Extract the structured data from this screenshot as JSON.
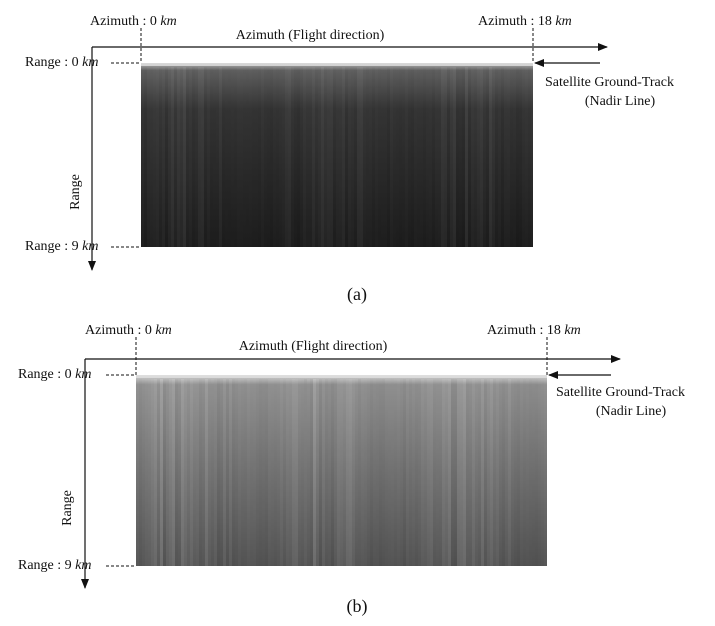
{
  "panels": [
    {
      "azimuth_start": {
        "text": "Azimuth : 0",
        "unit": "km"
      },
      "azimuth_end": {
        "text": "Azimuth : 18",
        "unit": "km"
      },
      "azimuth_axis": "Azimuth (Flight direction)",
      "range_start": {
        "text": "Range : 0",
        "unit": "km"
      },
      "range_end": {
        "text": "Range : 9",
        "unit": "km"
      },
      "range_axis": "Range",
      "ground_track": [
        "Satellite Ground-Track",
        "(Nadir Line)"
      ],
      "caption": "(a)"
    },
    {
      "azimuth_start": {
        "text": "Azimuth : 0",
        "unit": "km"
      },
      "azimuth_end": {
        "text": "Azimuth : 18",
        "unit": "km"
      },
      "azimuth_axis": "Azimuth (Flight direction)",
      "range_start": {
        "text": "Range : 0",
        "unit": "km"
      },
      "range_end": {
        "text": "Range : 9",
        "unit": "km"
      },
      "range_axis": "Range",
      "ground_track": [
        "Satellite Ground-Track",
        "(Nadir Line)"
      ],
      "caption": "(b)"
    }
  ]
}
